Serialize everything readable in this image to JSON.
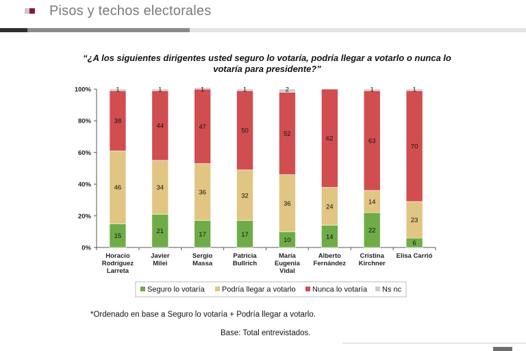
{
  "header": {
    "title": "Pisos y techos electorales"
  },
  "colors": {
    "seguro": "#6fac48",
    "podria": "#e0c583",
    "nunca": "#d14e50",
    "nsnc": "#cfc9d3"
  },
  "chart_data": {
    "type": "bar",
    "stacked": true,
    "title": "“¿A los siguientes dirigentes usted seguro lo votaría, podría llegar a votarlo o nunca lo votaría para presidente?”",
    "categories": [
      [
        "Horacio",
        "Rodríguez",
        "Larreta"
      ],
      [
        "Javier",
        "Milei"
      ],
      [
        "Sergio",
        "Massa"
      ],
      [
        "Patricia",
        "Bullrich"
      ],
      [
        "María",
        "Eugenia",
        "Vidal"
      ],
      [
        "Alberto",
        "Fernández"
      ],
      [
        "Cristina",
        "Kirchner"
      ],
      [
        "Elisa Carrió"
      ]
    ],
    "series": [
      {
        "name": "Seguro lo votaría",
        "key": "seguro",
        "values": [
          15,
          21,
          17,
          17,
          10,
          14,
          22,
          6
        ]
      },
      {
        "name": "Podría llegar a votarlo",
        "key": "podria",
        "values": [
          46,
          34,
          36,
          32,
          36,
          24,
          14,
          23
        ]
      },
      {
        "name": "Nunca lo votaría",
        "key": "nunca",
        "values": [
          38,
          44,
          47,
          50,
          52,
          62,
          63,
          70
        ]
      },
      {
        "name": "Ns nc",
        "key": "nsnc",
        "values": [
          1,
          1,
          1,
          1,
          2,
          null,
          1,
          1
        ]
      }
    ],
    "yticks": [
      "0%",
      "20%",
      "40%",
      "60%",
      "80%",
      "100%"
    ],
    "ylim": [
      0,
      100
    ],
    "legend_position": "bottom"
  },
  "footnote": "*Ordenado en base a Seguro lo votaría + Podría llegar a votarlo.",
  "base": "Base: Total entrevistados."
}
